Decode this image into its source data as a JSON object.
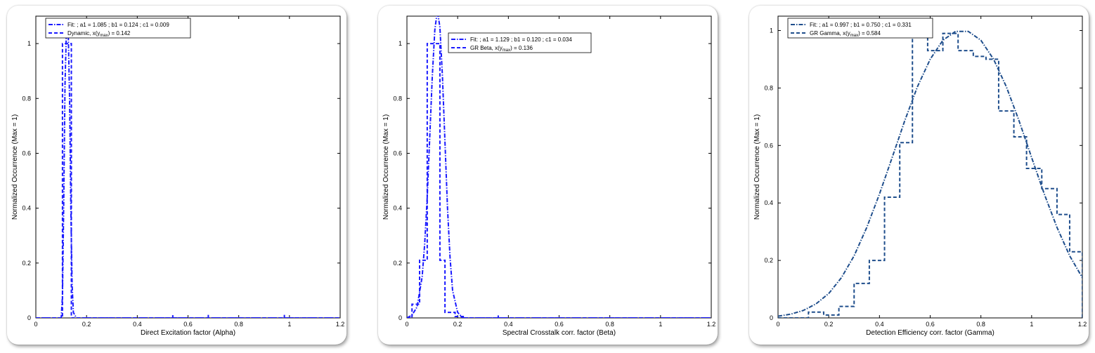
{
  "chart_data": [
    {
      "type": "line",
      "xlabel": "Direct Excitation factor (Alpha)",
      "ylabel": "Normalized Occurrence (Max = 1)",
      "xlim": [
        0,
        1.2
      ],
      "ylim": [
        0,
        1.1
      ],
      "xticks": [
        0,
        0.2,
        0.4,
        0.6,
        0.8,
        1,
        1.2
      ],
      "xtick_labels": [
        "0",
        "0.2",
        "0.4",
        "0.6",
        "0.8",
        "1",
        "1.2"
      ],
      "yticks": [
        0,
        0.2,
        0.4,
        0.6,
        0.8,
        1
      ],
      "ytick_labels": [
        "0",
        "0.2",
        "0.4",
        "0.6",
        "0.8",
        "1"
      ],
      "legend_position": "top-left",
      "color": "#1a1aff",
      "series": [
        {
          "name": "Fit: ; a1 = 1.085 ; b1 = 0.124 ; c1 = 0.009",
          "legend_label": "Fit: ; a1 = 1.085 ; b1 = 0.124 ; c1 = 0.009",
          "style": "curve",
          "x": [
            0.0,
            0.08,
            0.1,
            0.105,
            0.11,
            0.115,
            0.12,
            0.124,
            0.128,
            0.133,
            0.138,
            0.143,
            0.148,
            0.16,
            1.2
          ],
          "y": [
            0.0,
            0.0,
            0.0,
            0.08,
            0.42,
            0.85,
            1.03,
            1.085,
            1.03,
            0.8,
            0.4,
            0.12,
            0.02,
            0.0,
            0.0
          ]
        },
        {
          "name": "Dynamic, x(ymax) = 0.142",
          "legend_label": "Dynamic, x(y",
          "legend_sub": "max",
          "legend_suffix": ") = 0.142",
          "style": "histogram",
          "x": [
            0.0,
            0.105,
            0.105,
            0.14,
            0.14,
            1.2
          ],
          "y": [
            0.0,
            0.0,
            1.0,
            1.0,
            0.0,
            0.0
          ],
          "spikes": [
            [
              0.54,
              0.005
            ],
            [
              0.68,
              0.006
            ],
            [
              0.98,
              0.006
            ]
          ]
        }
      ]
    },
    {
      "type": "line",
      "xlabel": "Spectral Crosstalk corr. factor (Beta)",
      "ylabel": "Normalized Occurrence (Max = 1)",
      "xlim": [
        0,
        1.2
      ],
      "ylim": [
        0,
        1.1
      ],
      "xticks": [
        0,
        0.2,
        0.4,
        0.6,
        0.8,
        1,
        1.2
      ],
      "xtick_labels": [
        "0",
        "0.2",
        "0.4",
        "0.6",
        "0.8",
        "1",
        "1.2"
      ],
      "yticks": [
        0,
        0.2,
        0.4,
        0.6,
        0.8,
        1
      ],
      "ytick_labels": [
        "0",
        "0.2",
        "0.4",
        "0.6",
        "0.8",
        "1"
      ],
      "legend_position": "top-right",
      "color": "#1a1aff",
      "series": [
        {
          "name": "Fit: ; a1 = 1.129 ; b1 = 0.120 ; c1 = 0.034",
          "legend_label": "Fit: ; a1 = 1.129 ; b1 = 0.120 ; c1 = 0.034",
          "style": "curve",
          "x": [
            0.0,
            0.02,
            0.04,
            0.06,
            0.07,
            0.08,
            0.09,
            0.1,
            0.11,
            0.12,
            0.13,
            0.14,
            0.15,
            0.16,
            0.17,
            0.18,
            0.2,
            0.22,
            0.25,
            1.2
          ],
          "y": [
            0.0,
            0.01,
            0.04,
            0.15,
            0.27,
            0.44,
            0.66,
            0.88,
            1.05,
            1.12,
            1.06,
            0.88,
            0.64,
            0.4,
            0.22,
            0.1,
            0.02,
            0.0,
            0.0,
            0.0
          ]
        },
        {
          "name": "GR Beta, x(ymax) = 0.136",
          "legend_label": "GR Beta, x(y",
          "legend_sub": "max",
          "legend_suffix": ") = 0.136",
          "style": "histogram",
          "x": [
            0.0,
            0.02,
            0.02,
            0.05,
            0.05,
            0.08,
            0.08,
            0.13,
            0.13,
            0.15,
            0.15,
            0.19,
            0.19,
            0.23,
            0.23,
            1.2
          ],
          "y": [
            0.0,
            0.0,
            0.05,
            0.05,
            0.21,
            0.21,
            1.0,
            1.0,
            0.21,
            0.21,
            0.02,
            0.02,
            0.005,
            0.005,
            0.0,
            0.0
          ],
          "spikes": [
            [
              0.36,
              0.004
            ]
          ]
        }
      ]
    },
    {
      "type": "line",
      "xlabel": "Detection Efficiency corr. factor (Gamma)",
      "ylabel": "Normalized Occurrence (Max = 1)",
      "xlim": [
        0,
        1.2
      ],
      "ylim": [
        0,
        1.05
      ],
      "xticks": [
        0,
        0.2,
        0.4,
        0.6,
        0.8,
        1,
        1.2
      ],
      "xtick_labels": [
        "0",
        "0.2",
        "0.4",
        "0.6",
        "0.8",
        "1",
        "1.2"
      ],
      "yticks": [
        0,
        0.2,
        0.4,
        0.6,
        0.8,
        1
      ],
      "ytick_labels": [
        "0",
        "0.2",
        "0.4",
        "0.6",
        "0.8",
        "1"
      ],
      "legend_position": "top-left",
      "color": "#1f4e8c",
      "series": [
        {
          "name": "Fit: ; a1 = 0.997 ; b1 = 0.750 ; c1 = 0.331",
          "legend_label": "Fit: ; a1 = 0.997 ; b1 = 0.750 ; c1 = 0.331",
          "style": "curve",
          "x": [
            0.0,
            0.05,
            0.1,
            0.15,
            0.2,
            0.25,
            0.3,
            0.35,
            0.4,
            0.45,
            0.5,
            0.55,
            0.6,
            0.65,
            0.7,
            0.75,
            0.8,
            0.85,
            0.9,
            0.95,
            1.0,
            1.05,
            1.1,
            1.15,
            1.2
          ],
          "y": [
            0.006,
            0.013,
            0.026,
            0.049,
            0.085,
            0.14,
            0.216,
            0.315,
            0.431,
            0.558,
            0.687,
            0.805,
            0.9,
            0.966,
            0.997,
            0.997,
            0.966,
            0.9,
            0.805,
            0.687,
            0.558,
            0.431,
            0.315,
            0.216,
            0.14
          ]
        },
        {
          "name": "GR Gamma, x(ymax) = 0.584",
          "legend_label": "GR Gamma, x(y",
          "legend_sub": "max",
          "legend_suffix": ") = 0.584",
          "style": "histogram",
          "x": [
            0.0,
            0.12,
            0.12,
            0.18,
            0.18,
            0.24,
            0.24,
            0.3,
            0.3,
            0.36,
            0.36,
            0.42,
            0.42,
            0.48,
            0.48,
            0.53,
            0.53,
            0.59,
            0.59,
            0.65,
            0.65,
            0.71,
            0.71,
            0.77,
            0.77,
            0.82,
            0.82,
            0.87,
            0.87,
            0.93,
            0.93,
            0.98,
            0.98,
            1.04,
            1.04,
            1.1,
            1.1,
            1.15,
            1.15,
            1.2,
            1.2
          ],
          "y": [
            0.0,
            0.0,
            0.02,
            0.02,
            0.01,
            0.01,
            0.04,
            0.04,
            0.12,
            0.12,
            0.2,
            0.2,
            0.42,
            0.42,
            0.61,
            0.61,
            1.0,
            1.0,
            0.93,
            0.93,
            0.99,
            0.99,
            0.93,
            0.93,
            0.91,
            0.91,
            0.9,
            0.9,
            0.72,
            0.72,
            0.63,
            0.63,
            0.52,
            0.52,
            0.45,
            0.45,
            0.36,
            0.36,
            0.23,
            0.23,
            0.0
          ]
        }
      ]
    }
  ]
}
